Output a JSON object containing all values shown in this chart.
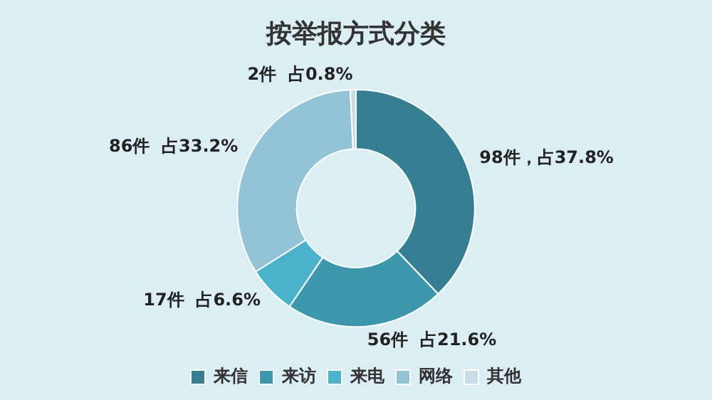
{
  "chart_data": {
    "type": "donut",
    "title": "按举报方式分类",
    "categories": [
      "来信",
      "来访",
      "来电",
      "网络",
      "其他"
    ],
    "values": [
      98,
      56,
      17,
      86,
      2
    ],
    "colors": [
      "#367f93",
      "#3b98ad",
      "#4ab2c9",
      "#93c4d6",
      "#c6dde6"
    ],
    "value_labels": [
      "98件，占37.8%",
      "56件  占21.6%",
      "17件  占6.6%",
      "86件  占33.2%",
      "2件  占0.8%"
    ],
    "legend": "bottom"
  }
}
